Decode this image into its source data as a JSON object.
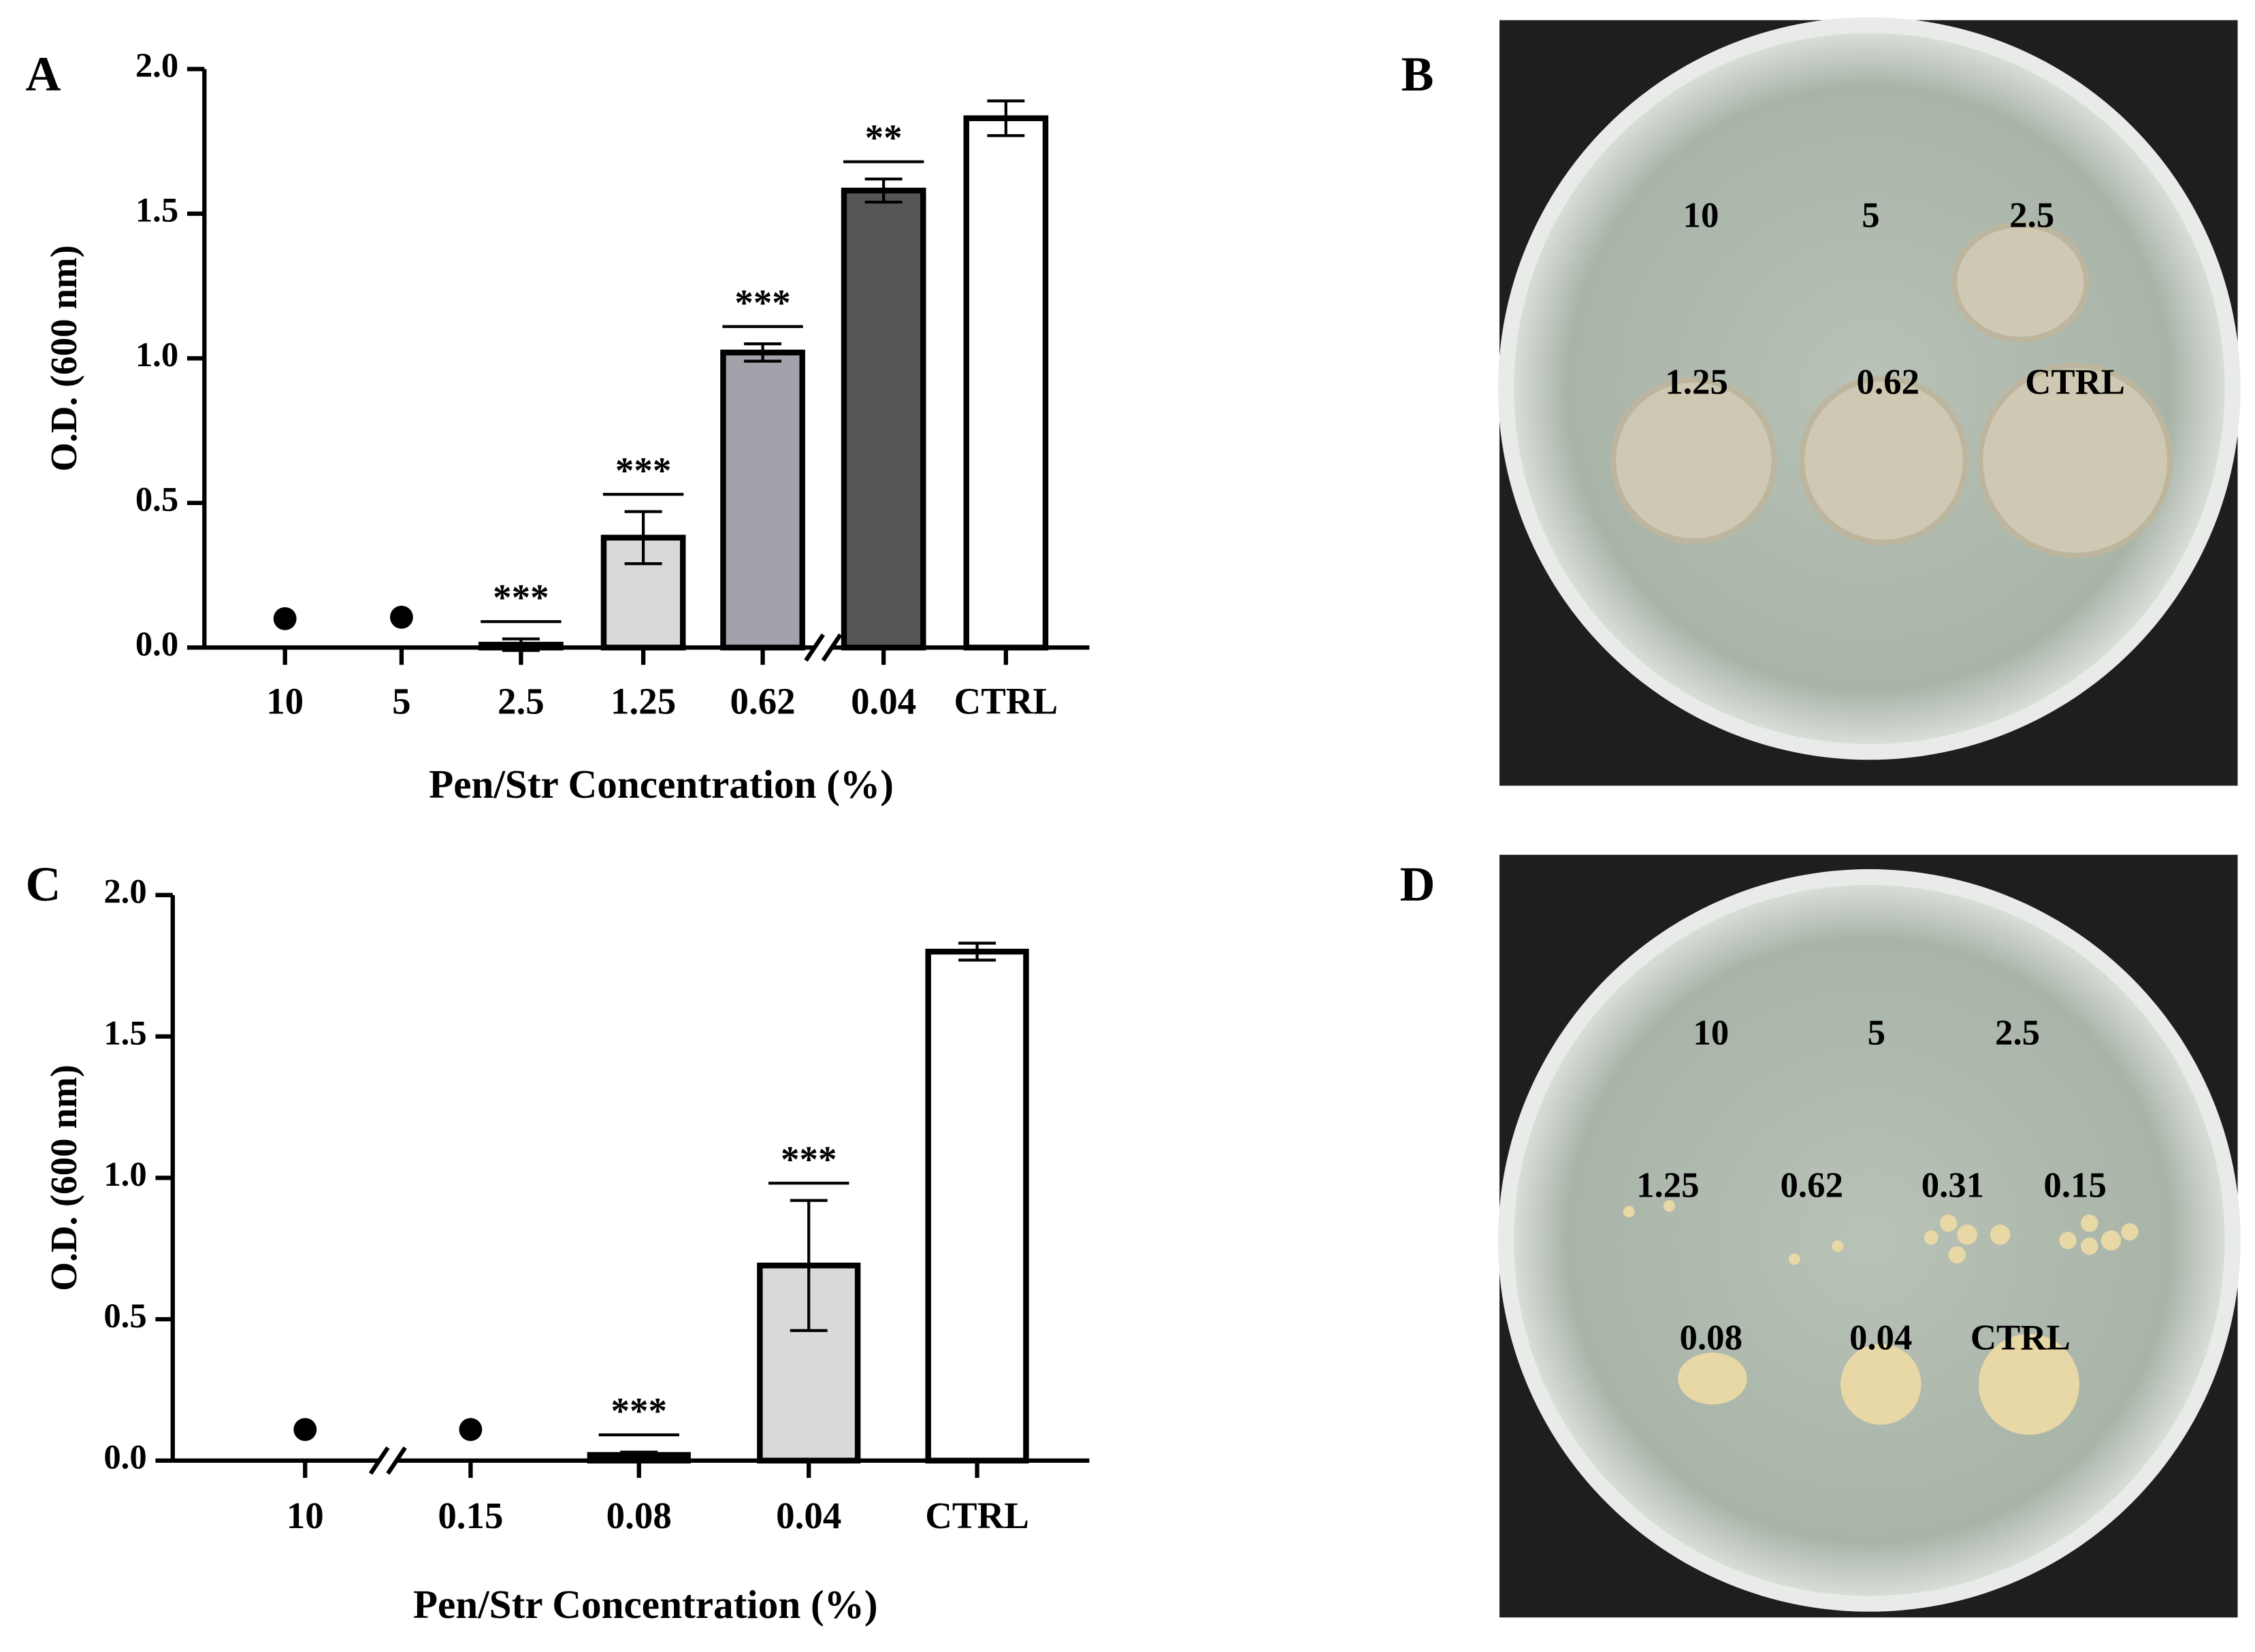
{
  "chart_data": [
    {
      "type": "bar",
      "panel": "A",
      "categories": [
        "10",
        "5",
        "2.5",
        "1.25",
        "0.62",
        "0.04",
        "CTRL"
      ],
      "values": [
        null,
        null,
        0.01,
        0.38,
        1.02,
        1.58,
        1.83
      ],
      "errors": [
        null,
        null,
        0.02,
        0.09,
        0.03,
        0.04,
        0.06
      ],
      "colors": [
        null,
        null,
        "#e0e0e0",
        "#d9d9d9",
        "#a2a2aa",
        "#555555",
        "#ffffff"
      ],
      "markers": [
        0.1,
        0.105,
        null,
        null,
        null,
        null,
        null
      ],
      "annotations": [
        null,
        null,
        "***",
        "***",
        "***",
        "**",
        null
      ],
      "axis_break_after": 4,
      "ylim": [
        0,
        2
      ],
      "yticks": [
        {
          "value": 0,
          "label": "0.0"
        },
        {
          "value": 0.5,
          "label": "0.5"
        },
        {
          "value": 1,
          "label": "1.0"
        },
        {
          "value": 1.5,
          "label": "1.5"
        },
        {
          "value": 2,
          "label": "2.0"
        }
      ],
      "ylabel": "O.D. (600 nm)",
      "xlabel": "Pen/Str Concentration (%)"
    },
    {
      "type": "bar",
      "panel": "C",
      "categories": [
        "10",
        "0.15",
        "0.08",
        "0.04",
        "CTRL"
      ],
      "values": [
        null,
        null,
        0.02,
        0.69,
        1.8
      ],
      "errors": [
        null,
        null,
        0.01,
        0.23,
        0.03
      ],
      "colors": [
        null,
        null,
        "#e0e0e0",
        "#d9d9d9",
        "#ffffff"
      ],
      "markers": [
        0.11,
        0.11,
        null,
        null,
        null
      ],
      "annotations": [
        null,
        null,
        "***",
        "***",
        null
      ],
      "axis_break_after": 0,
      "ylim": [
        0,
        2
      ],
      "yticks": [
        {
          "value": 0,
          "label": "0.0"
        },
        {
          "value": 0.5,
          "label": "0.5"
        },
        {
          "value": 1,
          "label": "1.0"
        },
        {
          "value": 1.5,
          "label": "1.5"
        },
        {
          "value": 2,
          "label": "2.0"
        }
      ],
      "ylabel": "O.D. (600 nm)",
      "xlabel": "Pen/Str Concentration (%)"
    }
  ],
  "plates": [
    {
      "panel": "B",
      "labels": [
        "10",
        "5",
        "2.5",
        "1.25",
        "0.62",
        "CTRL"
      ]
    },
    {
      "panel": "D",
      "labels": [
        "10",
        "5",
        "2.5",
        "1.25",
        "0.62",
        "0.31",
        "0.15",
        "0.08",
        "0.04",
        "CTRL"
      ]
    }
  ]
}
